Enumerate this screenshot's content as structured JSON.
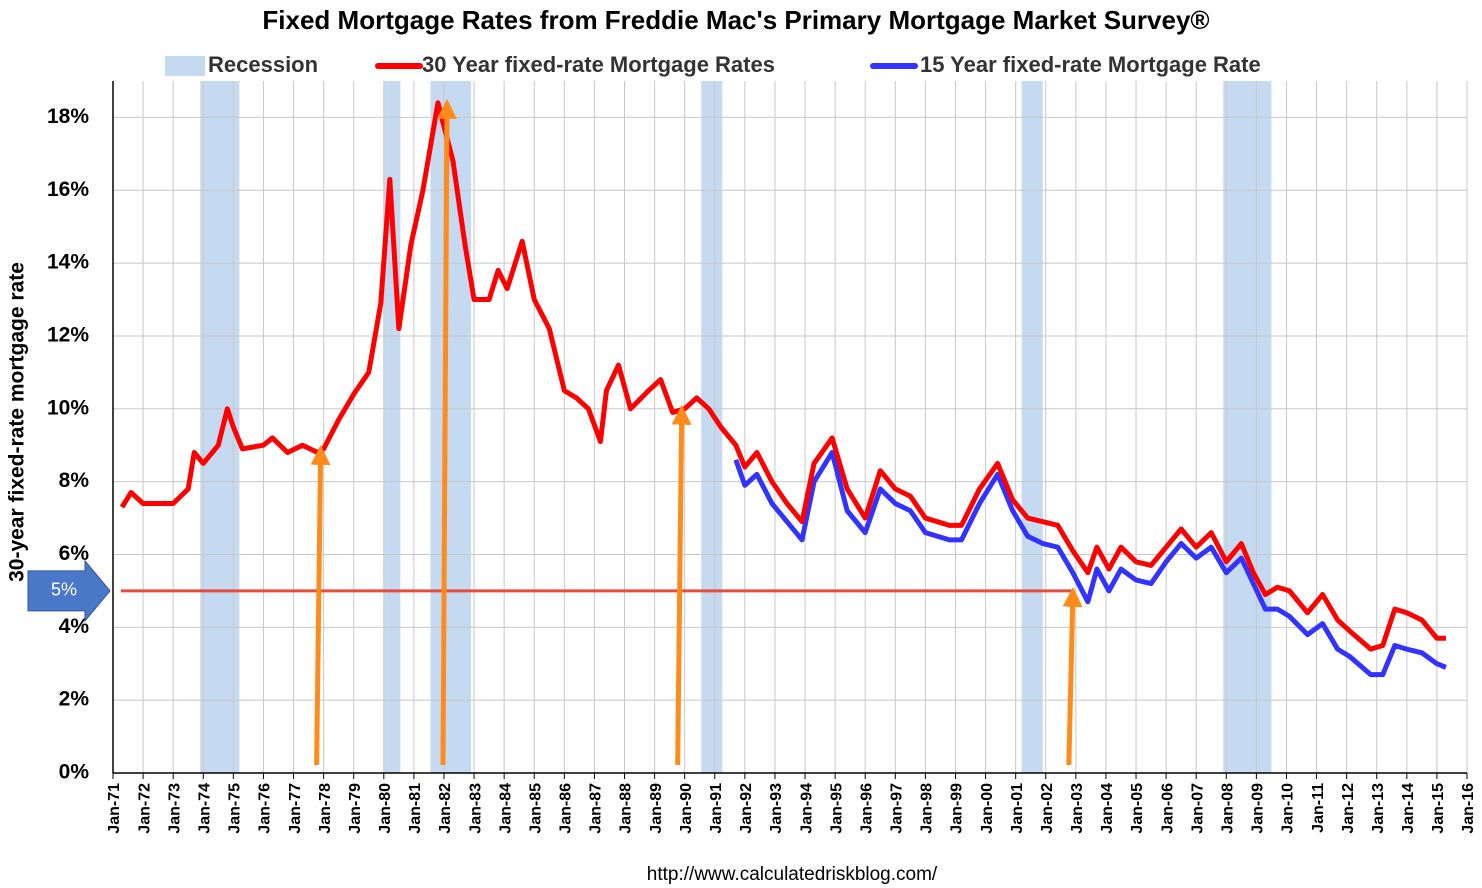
{
  "chart_data": {
    "type": "line",
    "title": "Fixed Mortgage Rates from Freddie Mac's Primary Mortgage Market Survey®",
    "y_label": "30-year fixed-rate mortgage rate",
    "source": "http://www.calculatedriskblog.com/",
    "xlim": [
      1971,
      2016
    ],
    "xticks": [
      {
        "value": 1971,
        "label": "Jan-71"
      },
      {
        "value": 1972,
        "label": "Jan-72"
      },
      {
        "value": 1973,
        "label": "Jan-73"
      },
      {
        "value": 1974,
        "label": "Jan-74"
      },
      {
        "value": 1975,
        "label": "Jan-75"
      },
      {
        "value": 1976,
        "label": "Jan-76"
      },
      {
        "value": 1977,
        "label": "Jan-77"
      },
      {
        "value": 1978,
        "label": "Jan-78"
      },
      {
        "value": 1979,
        "label": "Jan-79"
      },
      {
        "value": 1980,
        "label": "Jan-80"
      },
      {
        "value": 1981,
        "label": "Jan-81"
      },
      {
        "value": 1982,
        "label": "Jan-82"
      },
      {
        "value": 1983,
        "label": "Jan-83"
      },
      {
        "value": 1984,
        "label": "Jan-84"
      },
      {
        "value": 1985,
        "label": "Jan-85"
      },
      {
        "value": 1986,
        "label": "Jan-86"
      },
      {
        "value": 1987,
        "label": "Jan-87"
      },
      {
        "value": 1988,
        "label": "Jan-88"
      },
      {
        "value": 1989,
        "label": "Jan-89"
      },
      {
        "value": 1990,
        "label": "Jan-90"
      },
      {
        "value": 1991,
        "label": "Jan-91"
      },
      {
        "value": 1992,
        "label": "Jan-92"
      },
      {
        "value": 1993,
        "label": "Jan-93"
      },
      {
        "value": 1994,
        "label": "Jan-94"
      },
      {
        "value": 1995,
        "label": "Jan-95"
      },
      {
        "value": 1996,
        "label": "Jan-96"
      },
      {
        "value": 1997,
        "label": "Jan-97"
      },
      {
        "value": 1998,
        "label": "Jan-98"
      },
      {
        "value": 1999,
        "label": "Jan-99"
      },
      {
        "value": 2000,
        "label": "Jan-00"
      },
      {
        "value": 2001,
        "label": "Jan-01"
      },
      {
        "value": 2002,
        "label": "Jan-02"
      },
      {
        "value": 2003,
        "label": "Jan-03"
      },
      {
        "value": 2004,
        "label": "Jan-04"
      },
      {
        "value": 2005,
        "label": "Jan-05"
      },
      {
        "value": 2006,
        "label": "Jan-06"
      },
      {
        "value": 2007,
        "label": "Jan-07"
      },
      {
        "value": 2008,
        "label": "Jan-08"
      },
      {
        "value": 2009,
        "label": "Jan-09"
      },
      {
        "value": 2010,
        "label": "Jan-10"
      },
      {
        "value": 2011,
        "label": "Jan-11"
      },
      {
        "value": 2012,
        "label": "Jan-12"
      },
      {
        "value": 2013,
        "label": "Jan-13"
      },
      {
        "value": 2014,
        "label": "Jan-14"
      },
      {
        "value": 2015,
        "label": "Jan-15"
      },
      {
        "value": 2016,
        "label": "Jan-16"
      }
    ],
    "ylim": [
      0,
      19
    ],
    "yticks": [
      {
        "value": 0,
        "label": "0%"
      },
      {
        "value": 2,
        "label": "2%"
      },
      {
        "value": 4,
        "label": "4%"
      },
      {
        "value": 6,
        "label": "6%"
      },
      {
        "value": 8,
        "label": "8%"
      },
      {
        "value": 10,
        "label": "10%"
      },
      {
        "value": 12,
        "label": "12%"
      },
      {
        "value": 14,
        "label": "14%"
      },
      {
        "value": 16,
        "label": "16%"
      },
      {
        "value": 18,
        "label": "18%"
      }
    ],
    "grid": true,
    "recession": {
      "name": "Recession",
      "color": "#c5d9f1",
      "periods": [
        [
          1973.9,
          1975.2
        ],
        [
          1980.0,
          1980.55
        ],
        [
          1981.55,
          1982.9
        ],
        [
          1990.55,
          1991.25
        ],
        [
          2001.2,
          2001.9
        ],
        [
          2007.9,
          2009.5
        ]
      ]
    },
    "series": [
      {
        "name": "30 Year fixed-rate Mortgage Rates",
        "color": "#ff0000",
        "x": [
          1971.3,
          1971.6,
          1972,
          1972.5,
          1973,
          1973.5,
          1973.7,
          1974,
          1974.5,
          1974.8,
          1975,
          1975.3,
          1976,
          1976.3,
          1976.8,
          1977.3,
          1977.8,
          1978,
          1978.5,
          1979,
          1979.5,
          1979.9,
          1980.2,
          1980.5,
          1980.9,
          1981.3,
          1981.8,
          1982.3,
          1982.7,
          1983,
          1983.5,
          1983.8,
          1984.1,
          1984.6,
          1985,
          1985.5,
          1986,
          1986.4,
          1986.8,
          1987.2,
          1987.4,
          1987.8,
          1988.2,
          1988.8,
          1989.2,
          1989.6,
          1990,
          1990.4,
          1990.8,
          1991.2,
          1991.7,
          1992,
          1992.4,
          1992.9,
          1993.4,
          1993.9,
          1994.3,
          1994.9,
          1995.4,
          1996,
          1996.5,
          1997,
          1997.5,
          1998,
          1998.8,
          1999.2,
          1999.8,
          2000.4,
          2000.9,
          2001.4,
          2001.9,
          2002.4,
          2002.9,
          2003.4,
          2003.7,
          2004.1,
          2004.5,
          2005,
          2005.5,
          2006,
          2006.5,
          2007,
          2007.5,
          2008,
          2008.5,
          2008.9,
          2009.3,
          2009.7,
          2010.1,
          2010.7,
          2011.2,
          2011.7,
          2012.1,
          2012.8,
          2013.2,
          2013.6,
          2014,
          2014.5,
          2015,
          2015.3
        ],
        "values": [
          7.3,
          7.7,
          7.4,
          7.4,
          7.4,
          7.8,
          8.8,
          8.5,
          9.0,
          10.0,
          9.5,
          8.9,
          9.0,
          9.2,
          8.8,
          9.0,
          8.8,
          8.9,
          9.7,
          10.4,
          11.0,
          12.9,
          16.3,
          12.2,
          14.5,
          16.0,
          18.4,
          16.8,
          14.5,
          13.0,
          13.0,
          13.8,
          13.3,
          14.6,
          13.0,
          12.2,
          10.5,
          10.3,
          10.0,
          9.1,
          10.5,
          11.2,
          10.0,
          10.5,
          10.8,
          9.9,
          10.0,
          10.3,
          10.0,
          9.5,
          9.0,
          8.4,
          8.8,
          8.0,
          7.4,
          6.9,
          8.5,
          9.2,
          7.8,
          7.0,
          8.3,
          7.8,
          7.6,
          7.0,
          6.8,
          6.8,
          7.8,
          8.5,
          7.5,
          7.0,
          6.9,
          6.8,
          6.1,
          5.5,
          6.2,
          5.6,
          6.2,
          5.8,
          5.7,
          6.2,
          6.7,
          6.2,
          6.6,
          5.8,
          6.3,
          5.5,
          4.9,
          5.1,
          5.0,
          4.4,
          4.9,
          4.2,
          3.9,
          3.4,
          3.5,
          4.5,
          4.4,
          4.2,
          3.7,
          3.7
        ]
      },
      {
        "name": "15 Year fixed-rate Mortgage Rate",
        "color": "#3333ff",
        "x": [
          1991.7,
          1992,
          1992.4,
          1992.9,
          1993.4,
          1993.9,
          1994.3,
          1994.9,
          1995.4,
          1996,
          1996.5,
          1997,
          1997.5,
          1998,
          1998.8,
          1999.2,
          1999.8,
          2000.4,
          2000.9,
          2001.4,
          2001.9,
          2002.4,
          2002.9,
          2003.4,
          2003.7,
          2004.1,
          2004.5,
          2005,
          2005.5,
          2006,
          2006.5,
          2007,
          2007.5,
          2008,
          2008.5,
          2008.9,
          2009.3,
          2009.7,
          2010.1,
          2010.7,
          2011.2,
          2011.7,
          2012.1,
          2012.8,
          2013.2,
          2013.6,
          2014,
          2014.5,
          2015,
          2015.3
        ],
        "values": [
          8.6,
          7.9,
          8.2,
          7.4,
          6.9,
          6.4,
          8.0,
          8.8,
          7.2,
          6.6,
          7.8,
          7.4,
          7.2,
          6.6,
          6.4,
          6.4,
          7.4,
          8.2,
          7.2,
          6.5,
          6.3,
          6.2,
          5.5,
          4.7,
          5.6,
          5.0,
          5.6,
          5.3,
          5.2,
          5.8,
          6.3,
          5.9,
          6.2,
          5.5,
          5.9,
          5.2,
          4.5,
          4.5,
          4.3,
          3.8,
          4.1,
          3.4,
          3.2,
          2.7,
          2.7,
          3.5,
          3.4,
          3.3,
          3.0,
          2.9
        ]
      }
    ],
    "reference_line": {
      "value": 5,
      "label": "5%",
      "color": "#e84c3d"
    },
    "arrows": {
      "color": "#ff8c1a",
      "x": [
        1977.9,
        1982.1,
        1989.9,
        2002.9
      ],
      "y": [
        8.9,
        18.4,
        10.0,
        5.0
      ]
    }
  }
}
